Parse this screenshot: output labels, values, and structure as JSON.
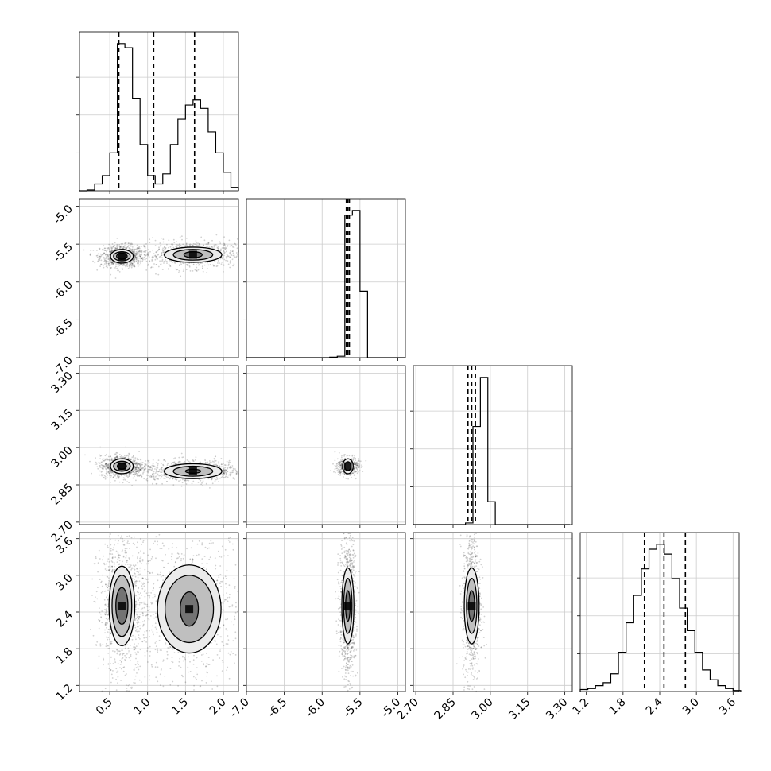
{
  "chart_data": {
    "type": "corner",
    "title": "",
    "grid": true,
    "parameters": [
      {
        "label": "",
        "range": [
          0.1,
          2.2
        ],
        "ticks": [
          "0.5",
          "1.0",
          "1.5",
          "2.0"
        ],
        "tick_values": [
          0.5,
          1.0,
          1.5,
          2.0
        ],
        "quantiles": [
          0.62,
          1.08,
          1.62
        ]
      },
      {
        "label": "",
        "range": [
          -7.0,
          -4.9
        ],
        "ticks": [
          "-7.0",
          "-6.5",
          "-6.0",
          "-5.5",
          "-5.0"
        ],
        "tick_values": [
          -7.0,
          -6.5,
          -6.0,
          -5.5,
          -5.0
        ],
        "quantiles": [
          -5.68,
          -5.66,
          -5.64
        ]
      },
      {
        "label": "",
        "range": [
          2.69,
          3.33
        ],
        "ticks": [
          "2.70",
          "2.85",
          "3.00",
          "3.15",
          "3.30"
        ],
        "tick_values": [
          2.7,
          2.85,
          3.0,
          3.15,
          3.3
        ],
        "quantiles": [
          2.91,
          2.925,
          2.94
        ]
      },
      {
        "label": "",
        "range": [
          1.1,
          3.7
        ],
        "ticks": [
          "1.2",
          "1.8",
          "2.4",
          "3.0",
          "3.6"
        ],
        "tick_values": [
          1.2,
          1.8,
          2.4,
          3.0,
          3.6
        ],
        "quantiles": [
          2.15,
          2.47,
          2.82
        ]
      }
    ],
    "histograms": [
      {
        "param": 0,
        "bins": [
          0.1,
          0.2,
          0.3,
          0.4,
          0.5,
          0.6,
          0.7,
          0.8,
          0.9,
          1.0,
          1.1,
          1.2,
          1.3,
          1.4,
          1.5,
          1.6,
          1.7,
          1.8,
          1.9,
          2.0,
          2.1,
          2.2
        ],
        "counts": [
          0,
          1,
          8,
          18,
          45,
          175,
          170,
          110,
          55,
          18,
          8,
          20,
          55,
          85,
          102,
          108,
          98,
          70,
          45,
          22,
          4
        ]
      },
      {
        "param": 1,
        "bins": [
          -7.0,
          -6.9,
          -6.8,
          -6.7,
          -6.6,
          -6.5,
          -6.4,
          -6.3,
          -6.2,
          -6.1,
          -6.0,
          -5.9,
          -5.8,
          -5.7,
          -5.6,
          -5.5,
          -5.4,
          -5.3,
          -5.2,
          -5.1,
          -5.0,
          -4.9
        ],
        "counts": [
          0,
          0,
          0,
          0,
          0,
          0,
          0,
          0,
          0,
          0,
          0,
          2,
          6,
          600,
          620,
          280,
          0,
          0,
          0,
          0,
          0
        ]
      },
      {
        "param": 2,
        "bins": [
          2.69,
          2.72,
          2.75,
          2.78,
          2.81,
          2.84,
          2.87,
          2.9,
          2.93,
          2.96,
          2.99,
          3.02,
          3.05,
          3.08,
          3.11,
          3.14,
          3.17,
          3.2,
          3.23,
          3.26,
          3.29,
          3.32
        ],
        "counts": [
          0,
          0,
          0,
          0,
          0,
          0,
          0,
          5,
          300,
          450,
          70,
          0,
          0,
          0,
          0,
          0,
          0,
          0,
          0,
          0,
          0
        ]
      },
      {
        "param": 3,
        "bins": [
          1.1,
          1.225,
          1.35,
          1.475,
          1.6,
          1.725,
          1.85,
          1.975,
          2.1,
          2.225,
          2.35,
          2.475,
          2.6,
          2.725,
          2.85,
          2.975,
          3.1,
          3.225,
          3.35,
          3.475,
          3.6,
          3.725
        ],
        "counts": [
          2,
          3,
          6,
          9,
          18,
          40,
          70,
          98,
          125,
          145,
          150,
          140,
          115,
          85,
          62,
          40,
          22,
          12,
          6,
          3,
          1
        ]
      }
    ],
    "pairs": [
      {
        "x": 0,
        "y": 1,
        "modes": [
          {
            "cx": 0.66,
            "cy": -5.66,
            "sx": 0.08,
            "sy": 0.04,
            "n": 900,
            "levels": [
              [
                0.15,
                0.09
              ],
              [
                0.11,
                0.06
              ],
              [
                0.07,
                0.04
              ]
            ]
          },
          {
            "cx": 1.6,
            "cy": -5.64,
            "sx": 0.2,
            "sy": 0.05,
            "n": 800,
            "levels": [
              [
                0.38,
                0.1
              ],
              [
                0.26,
                0.07
              ],
              [
                0.12,
                0.04
              ]
            ]
          }
        ]
      },
      {
        "x": 0,
        "y": 2,
        "modes": [
          {
            "cx": 0.66,
            "cy": 2.925,
            "sx": 0.08,
            "sy": 0.012,
            "n": 900,
            "levels": [
              [
                0.15,
                0.03
              ],
              [
                0.11,
                0.02
              ],
              [
                0.06,
                0.012
              ]
            ]
          },
          {
            "cx": 1.6,
            "cy": 2.905,
            "sx": 0.2,
            "sy": 0.012,
            "n": 800,
            "levels": [
              [
                0.38,
                0.03
              ],
              [
                0.26,
                0.02
              ],
              [
                0.1,
                0.008
              ]
            ]
          }
        ]
      },
      {
        "x": 0,
        "y": 3,
        "modes": [
          {
            "cx": 0.66,
            "cy": 2.5,
            "sx": 0.09,
            "sy": 0.32,
            "n": 900,
            "levels": [
              [
                0.17,
                0.65
              ],
              [
                0.13,
                0.5
              ],
              [
                0.08,
                0.3
              ]
            ]
          },
          {
            "cx": 1.55,
            "cy": 2.45,
            "sx": 0.22,
            "sy": 0.35,
            "n": 900,
            "levels": [
              [
                0.42,
                0.72
              ],
              [
                0.32,
                0.55
              ],
              [
                0.12,
                0.28
              ]
            ]
          }
        ]
      },
      {
        "x": 1,
        "y": 2,
        "modes": [
          {
            "cx": -5.66,
            "cy": 2.925,
            "sx": 0.04,
            "sy": 0.01,
            "n": 500,
            "levels": [
              [
                0.07,
                0.03
              ],
              [
                0.04,
                0.018
              ]
            ]
          }
        ]
      },
      {
        "x": 1,
        "y": 3,
        "modes": [
          {
            "cx": -5.66,
            "cy": 2.5,
            "sx": 0.03,
            "sy": 0.35,
            "n": 900,
            "levels": [
              [
                0.08,
                0.62
              ],
              [
                0.055,
                0.45
              ],
              [
                0.03,
                0.25
              ]
            ]
          }
        ]
      },
      {
        "x": 2,
        "y": 3,
        "modes": [
          {
            "cx": 2.925,
            "cy": 2.5,
            "sx": 0.01,
            "sy": 0.35,
            "n": 900,
            "levels": [
              [
                0.03,
                0.62
              ],
              [
                0.021,
                0.45
              ],
              [
                0.012,
                0.25
              ]
            ]
          }
        ]
      }
    ],
    "colors": {
      "line": "#000000",
      "grid": "#cccccc",
      "points": "#000000"
    }
  }
}
